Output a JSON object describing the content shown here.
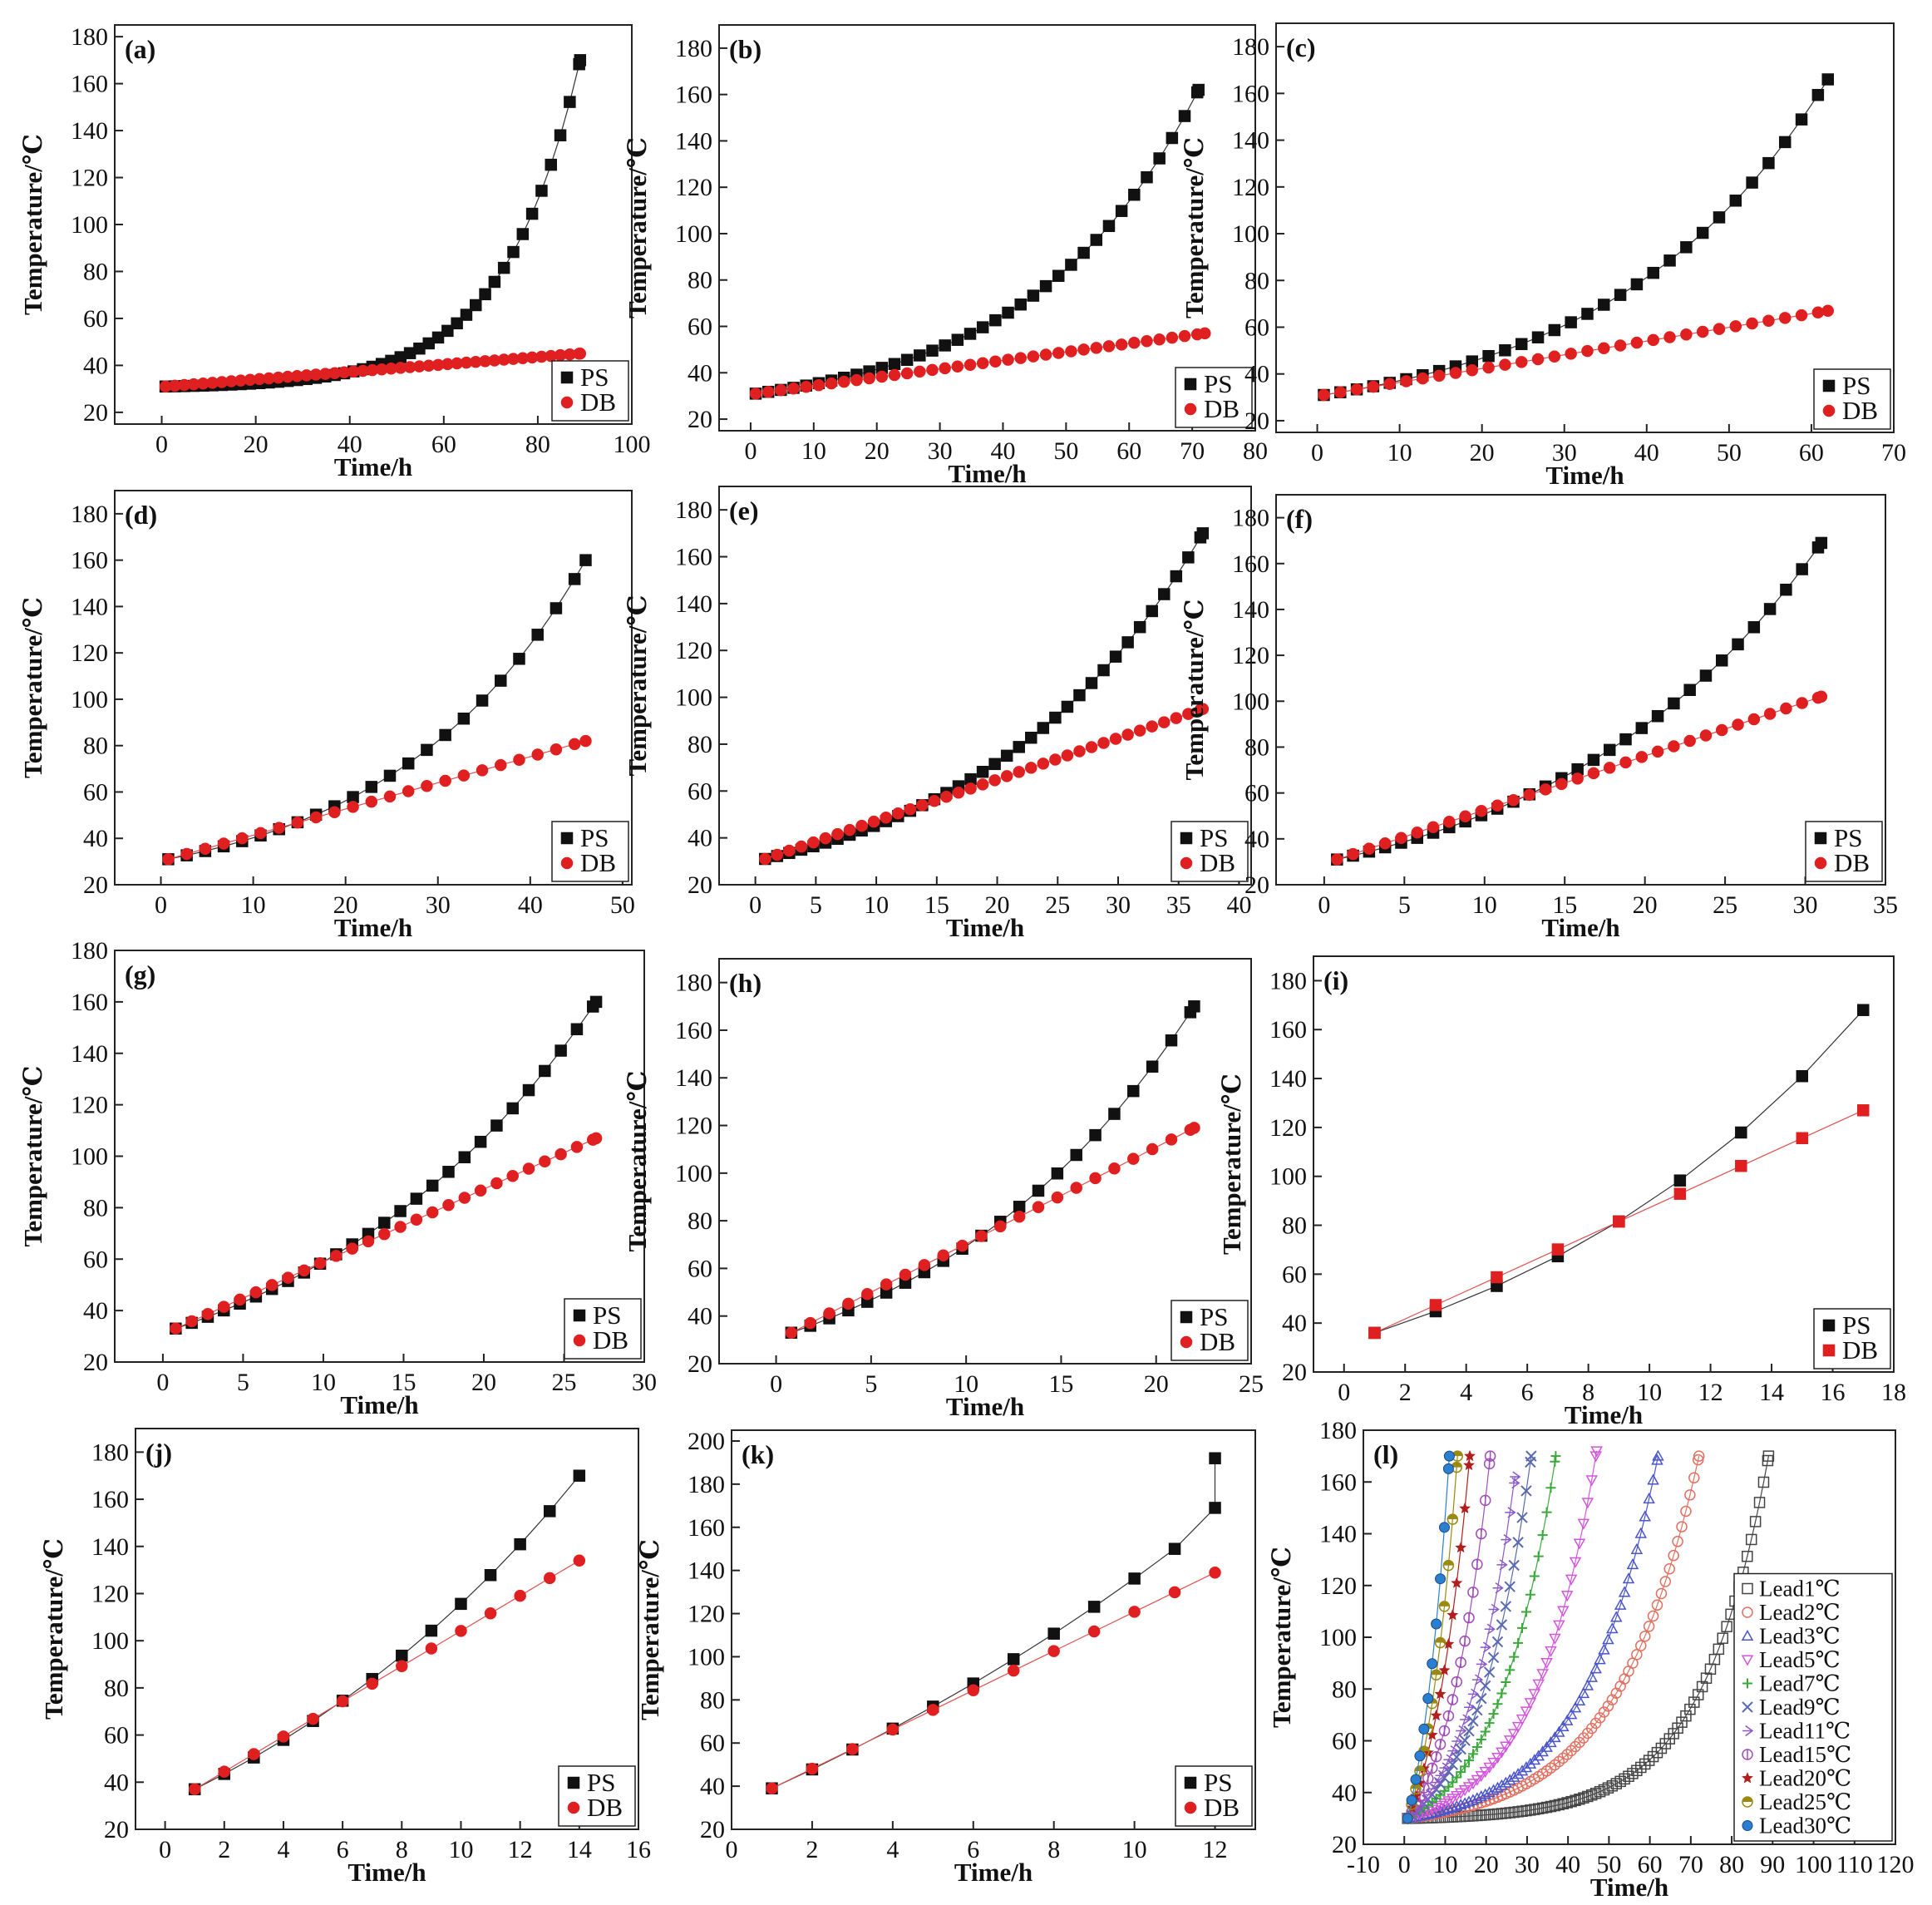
{
  "figure": "Temperature vs time for PS and DB, panels (a)-(l)",
  "colors": {
    "ps": "#111111",
    "db": "#e02020"
  },
  "l_colors": [
    "#444444",
    "#e07060",
    "#4a55cc",
    "#d455dd",
    "#3aa83a",
    "#5a6ab0",
    "#8a5ac8",
    "#a04db8",
    "#b01e1e",
    "#9a8a10",
    "#2a7fd0"
  ],
  "chart_data": [
    {
      "id": "a",
      "label": "(a)",
      "type": "scatter",
      "xlabel": "Time/h",
      "ylabel": "Temperature/℃",
      "xlim": [
        -10,
        100
      ],
      "ylim": [
        15,
        185
      ],
      "xticks": [
        0,
        20,
        40,
        60,
        80,
        100
      ],
      "yticks": [
        20,
        40,
        60,
        80,
        100,
        120,
        140,
        160,
        180
      ],
      "legend": [
        "PS",
        "DB"
      ],
      "series": [
        {
          "name": "PS",
          "t_end": 89,
          "T_end": 170,
          "k": 0.062,
          "step": 2
        },
        {
          "name": "DB",
          "t_end": 89,
          "T_end": 45,
          "k": 0,
          "step": 2
        }
      ]
    },
    {
      "id": "b",
      "label": "(b)",
      "type": "scatter",
      "xlabel": "Time/h",
      "ylabel": "Temperature/℃",
      "xlim": [
        -5,
        80
      ],
      "ylim": [
        15,
        190
      ],
      "xticks": [
        0,
        10,
        20,
        30,
        40,
        50,
        60,
        70,
        80
      ],
      "yticks": [
        20,
        40,
        60,
        80,
        100,
        120,
        140,
        160,
        180
      ],
      "legend": [
        "PS",
        "DB"
      ],
      "series": [
        {
          "name": "PS",
          "t_end": 71,
          "T_end": 162,
          "k": 0.038,
          "step": 2
        },
        {
          "name": "DB",
          "t_end": 72,
          "T_end": 57,
          "k": 0,
          "step": 2
        }
      ]
    },
    {
      "id": "c",
      "label": "(c)",
      "type": "scatter",
      "xlabel": "Time/h",
      "ylabel": "Temperature/℃",
      "xlim": [
        -5,
        70
      ],
      "ylim": [
        15,
        190
      ],
      "xticks": [
        0,
        10,
        20,
        30,
        40,
        50,
        60,
        70
      ],
      "yticks": [
        20,
        40,
        60,
        80,
        100,
        120,
        140,
        160,
        180
      ],
      "legend": [
        "PS",
        "DB"
      ],
      "series": [
        {
          "name": "PS",
          "t_end": 62,
          "T_end": 166,
          "k": 0.038,
          "step": 2
        },
        {
          "name": "DB",
          "t_end": 62,
          "T_end": 67,
          "k": 0,
          "step": 2
        }
      ]
    },
    {
      "id": "d",
      "label": "(d)",
      "type": "scatter",
      "xlabel": "Time/h",
      "ylabel": "Temperature/℃",
      "xlim": [
        -5,
        51
      ],
      "ylim": [
        20,
        190
      ],
      "xticks": [
        0,
        10,
        20,
        30,
        40,
        50
      ],
      "yticks": [
        20,
        40,
        60,
        80,
        100,
        120,
        140,
        160,
        180
      ],
      "legend": [
        "PS",
        "DB"
      ],
      "series": [
        {
          "name": "PS",
          "t_end": 46,
          "T_end": 160,
          "k": 0.048,
          "step": 2
        },
        {
          "name": "DB",
          "t_end": 46,
          "T_end": 82,
          "k": 0,
          "step": 2
        }
      ]
    },
    {
      "id": "e",
      "label": "(e)",
      "type": "scatter",
      "xlabel": "Time/h",
      "ylabel": "Temperature/℃",
      "xlim": [
        -3,
        41
      ],
      "ylim": [
        20,
        190
      ],
      "xticks": [
        0,
        5,
        10,
        15,
        20,
        25,
        30,
        35,
        40
      ],
      "yticks": [
        20,
        40,
        60,
        80,
        100,
        120,
        140,
        160,
        180
      ],
      "legend": [
        "PS",
        "DB"
      ],
      "series": [
        {
          "name": "PS",
          "t_end": 37,
          "T_end": 170,
          "k": 0.055,
          "step": 1
        },
        {
          "name": "DB",
          "t_end": 37,
          "T_end": 95,
          "k": 0,
          "step": 1
        }
      ]
    },
    {
      "id": "f",
      "label": "(f)",
      "type": "scatter",
      "xlabel": "Time/h",
      "ylabel": "Temperature/℃",
      "xlim": [
        -3,
        35
      ],
      "ylim": [
        20,
        190
      ],
      "xticks": [
        0,
        5,
        10,
        15,
        20,
        25,
        30,
        35
      ],
      "yticks": [
        20,
        40,
        60,
        80,
        100,
        120,
        140,
        160,
        180
      ],
      "legend": [
        "PS",
        "DB"
      ],
      "series": [
        {
          "name": "PS",
          "t_end": 31,
          "T_end": 169,
          "k": 0.06,
          "step": 1
        },
        {
          "name": "DB",
          "t_end": 31,
          "T_end": 102,
          "k": 0,
          "step": 1
        }
      ]
    },
    {
      "id": "g",
      "label": "(g)",
      "type": "scatter",
      "xlabel": "Time/h",
      "ylabel": "Temperature/℃",
      "xlim": [
        -3,
        30
      ],
      "ylim": [
        20,
        180
      ],
      "xticks": [
        0,
        5,
        10,
        15,
        20,
        25,
        30
      ],
      "yticks": [
        20,
        40,
        60,
        80,
        100,
        120,
        140,
        160,
        180
      ],
      "legend": [
        "PS",
        "DB"
      ],
      "series": [
        {
          "name": "PS",
          "t_end": 27,
          "T_end": 160,
          "k": 0.055,
          "step": 1
        },
        {
          "name": "DB",
          "t_end": 27,
          "T_end": 107,
          "k": 0,
          "step": 1
        }
      ]
    },
    {
      "id": "h",
      "label": "(h)",
      "type": "scatter",
      "xlabel": "Time/h",
      "ylabel": "Temperature/℃",
      "xlim": [
        -3,
        25
      ],
      "ylim": [
        20,
        190
      ],
      "xticks": [
        0,
        5,
        10,
        15,
        20,
        25
      ],
      "yticks": [
        20,
        40,
        60,
        80,
        100,
        120,
        140,
        160,
        180
      ],
      "legend": [
        "PS",
        "DB"
      ],
      "series": [
        {
          "name": "PS",
          "t_end": 22,
          "T_end": 170,
          "k": 0.07,
          "step": 1
        },
        {
          "name": "DB",
          "t_end": 22,
          "T_end": 119,
          "k": 0,
          "step": 1
        }
      ]
    },
    {
      "id": "i",
      "label": "(i)",
      "type": "scatter",
      "xlabel": "Time/h",
      "ylabel": "Temperature/℃",
      "xlim": [
        -1,
        18
      ],
      "ylim": [
        20,
        190
      ],
      "xticks": [
        0,
        2,
        4,
        6,
        8,
        10,
        12,
        14,
        16,
        18
      ],
      "yticks": [
        20,
        40,
        60,
        80,
        100,
        120,
        140,
        160,
        180
      ],
      "legend": [
        "PS",
        "DB"
      ],
      "series": [
        {
          "name": "PS",
          "t_start": 1,
          "t_end": 17,
          "T_end": 168,
          "k": 0.08,
          "step": 2
        },
        {
          "name": "DB",
          "t_start": 1,
          "t_end": 17,
          "T_end": 127,
          "k": 0,
          "step": 2
        }
      ]
    },
    {
      "id": "j",
      "label": "(j)",
      "type": "scatter",
      "xlabel": "Time/h",
      "ylabel": "Temperature/℃",
      "xlim": [
        -1,
        16
      ],
      "ylim": [
        20,
        190
      ],
      "xticks": [
        0,
        2,
        4,
        6,
        8,
        10,
        12,
        14,
        16
      ],
      "yticks": [
        20,
        40,
        60,
        80,
        100,
        120,
        140,
        160,
        180
      ],
      "legend": [
        "PS",
        "DB"
      ],
      "series": [
        {
          "name": "PS",
          "t_start": 1,
          "t_end": 14,
          "T_end": 170,
          "k": 0.07,
          "step": 1
        },
        {
          "name": "DB",
          "t_start": 1,
          "t_end": 14,
          "T_end": 134,
          "k": 0,
          "step": 1
        }
      ]
    },
    {
      "id": "k",
      "label": "(k)",
      "type": "scatter",
      "xlabel": "Time/h",
      "ylabel": "Temperature/℃",
      "xlim": [
        0,
        13
      ],
      "ylim": [
        20,
        205
      ],
      "xticks": [
        0,
        2,
        4,
        6,
        8,
        10,
        12
      ],
      "yticks": [
        20,
        40,
        60,
        80,
        100,
        120,
        140,
        160,
        180,
        200
      ],
      "legend": [
        "PS",
        "DB"
      ],
      "series": [
        {
          "name": "PS",
          "t_start": 1,
          "t_end": 11,
          "T_end": 150,
          "k": 0.05,
          "step": 1,
          "extra": [
            [
              12,
              169
            ],
            [
              12,
              192
            ]
          ]
        },
        {
          "name": "DB",
          "t_start": 1,
          "t_end": 12,
          "T_end": 139,
          "k": 0,
          "step": 1
        }
      ]
    },
    {
      "id": "l",
      "label": "(l)",
      "type": "scatter",
      "xlabel": "Time/h",
      "ylabel": "Temperature/℃",
      "xlim": [
        -10,
        120
      ],
      "ylim": [
        20,
        180
      ],
      "xticks": [
        -10,
        0,
        10,
        20,
        30,
        40,
        50,
        60,
        70,
        80,
        90,
        100,
        110,
        120
      ],
      "yticks": [
        20,
        40,
        60,
        80,
        100,
        120,
        140,
        160,
        180
      ],
      "legend": [
        "Lead1℃",
        "Lead2℃",
        "Lead3℃",
        "Lead5℃",
        "Lead7℃",
        "Lead9℃",
        "Lead11℃",
        "Lead15℃",
        "Lead20℃",
        "Lead25℃",
        "Lead30℃"
      ],
      "series": [
        {
          "name": "Lead1℃",
          "t_end": 89,
          "T_end": 170,
          "k": 0.062,
          "step": 1
        },
        {
          "name": "Lead2℃",
          "t_end": 72,
          "T_end": 170,
          "k": 0.05,
          "step": 1
        },
        {
          "name": "Lead3℃",
          "t_end": 62,
          "T_end": 170,
          "k": 0.055,
          "step": 1
        },
        {
          "name": "Lead5℃",
          "t_end": 47,
          "T_end": 172,
          "k": 0.065,
          "step": 1
        },
        {
          "name": "Lead7℃",
          "t_end": 37,
          "T_end": 170,
          "k": 0.07,
          "step": 1
        },
        {
          "name": "Lead9℃",
          "t_end": 31,
          "T_end": 170,
          "k": 0.075,
          "step": 1
        },
        {
          "name": "Lead11℃",
          "t_end": 27,
          "T_end": 162,
          "k": 0.08,
          "step": 1
        },
        {
          "name": "Lead15℃",
          "t_end": 21,
          "T_end": 170,
          "k": 0.09,
          "step": 1
        },
        {
          "name": "Lead20℃",
          "t_end": 16,
          "T_end": 170,
          "k": 0.1,
          "step": 1
        },
        {
          "name": "Lead25℃",
          "t_end": 13,
          "T_end": 170,
          "k": 0.12,
          "step": 1
        },
        {
          "name": "Lead30℃",
          "t_end": 11,
          "T_end": 170,
          "k": 0.13,
          "step": 1
        }
      ]
    }
  ]
}
